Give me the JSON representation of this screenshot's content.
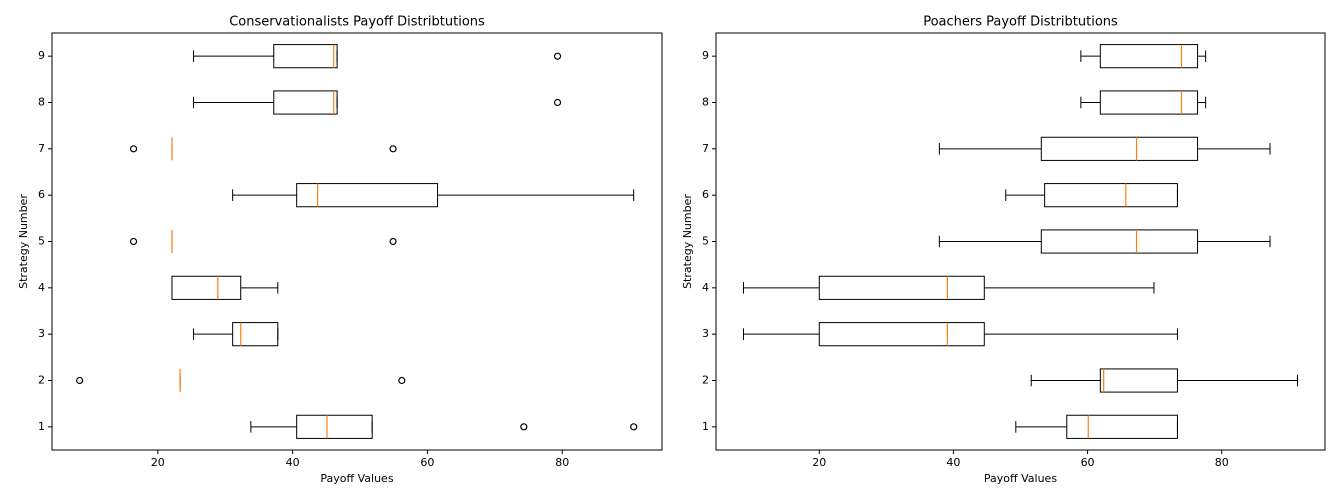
{
  "chart_data": [
    {
      "type": "boxplot",
      "orientation": "horizontal",
      "title": "Conservationalists Payoff Distribtutions",
      "xlabel": "Payoff Values",
      "ylabel": "Strategy Number",
      "categories": [
        "1",
        "2",
        "3",
        "4",
        "5",
        "6",
        "7",
        "8",
        "9"
      ],
      "box_color": "#000000",
      "median_color": "#ff7f0e",
      "xlim": [
        4.3,
        94.8
      ],
      "xticks": [
        20,
        40,
        60,
        80
      ],
      "boxes": [
        {
          "whislo": 33.8,
          "q1": 40.6,
          "med": 45.1,
          "q3": 51.8,
          "whishi": 51.8,
          "fliers": [
            74.3,
            90.6
          ]
        },
        {
          "whislo": 23.3,
          "q1": 23.3,
          "med": 23.3,
          "q3": 23.3,
          "whishi": 23.3,
          "fliers": [
            8.4,
            56.2
          ]
        },
        {
          "whislo": 25.3,
          "q1": 31.1,
          "med": 32.3,
          "q3": 37.8,
          "whishi": 37.8,
          "fliers": []
        },
        {
          "whislo": 22.1,
          "q1": 22.1,
          "med": 28.9,
          "q3": 32.3,
          "whishi": 37.8,
          "fliers": []
        },
        {
          "whislo": 22.1,
          "q1": 22.1,
          "med": 22.1,
          "q3": 22.1,
          "whishi": 22.1,
          "fliers": [
            16.4,
            54.9
          ]
        },
        {
          "whislo": 31.1,
          "q1": 40.6,
          "med": 43.7,
          "q3": 61.5,
          "whishi": 90.6,
          "fliers": []
        },
        {
          "whislo": 22.1,
          "q1": 22.1,
          "med": 22.1,
          "q3": 22.1,
          "whishi": 22.1,
          "fliers": [
            16.4,
            54.9
          ]
        },
        {
          "whislo": 25.3,
          "q1": 37.2,
          "med": 46.1,
          "q3": 46.6,
          "whishi": 46.6,
          "fliers": [
            79.3
          ]
        },
        {
          "whislo": 25.3,
          "q1": 37.2,
          "med": 46.1,
          "q3": 46.6,
          "whishi": 46.6,
          "fliers": [
            79.3
          ]
        }
      ]
    },
    {
      "type": "boxplot",
      "orientation": "horizontal",
      "title": "Poachers Payoff Distribtutions",
      "xlabel": "Payoff Values",
      "ylabel": "Strategy Number",
      "categories": [
        "1",
        "2",
        "3",
        "4",
        "5",
        "6",
        "7",
        "8",
        "9"
      ],
      "box_color": "#000000",
      "median_color": "#ff7f0e",
      "xlim": [
        4.6,
        95.4
      ],
      "xticks": [
        20,
        40,
        60,
        80
      ],
      "boxes": [
        {
          "whislo": 49.3,
          "q1": 56.9,
          "med": 60.1,
          "q3": 73.4,
          "whishi": 73.4,
          "fliers": []
        },
        {
          "whislo": 51.6,
          "q1": 61.9,
          "med": 62.4,
          "q3": 73.4,
          "whishi": 91.3,
          "fliers": []
        },
        {
          "whislo": 8.7,
          "q1": 20.0,
          "med": 39.1,
          "q3": 44.6,
          "whishi": 73.4,
          "fliers": []
        },
        {
          "whislo": 8.7,
          "q1": 20.0,
          "med": 39.1,
          "q3": 44.6,
          "whishi": 69.9,
          "fliers": []
        },
        {
          "whislo": 37.9,
          "q1": 53.1,
          "med": 67.3,
          "q3": 76.4,
          "whishi": 87.2,
          "fliers": []
        },
        {
          "whislo": 47.8,
          "q1": 53.6,
          "med": 65.7,
          "q3": 73.4,
          "whishi": 73.4,
          "fliers": []
        },
        {
          "whislo": 37.9,
          "q1": 53.1,
          "med": 67.3,
          "q3": 76.4,
          "whishi": 87.2,
          "fliers": []
        },
        {
          "whislo": 59.0,
          "q1": 61.9,
          "med": 74.0,
          "q3": 76.4,
          "whishi": 77.6,
          "fliers": []
        },
        {
          "whislo": 59.0,
          "q1": 61.9,
          "med": 74.0,
          "q3": 76.4,
          "whishi": 77.6,
          "fliers": []
        }
      ]
    }
  ]
}
